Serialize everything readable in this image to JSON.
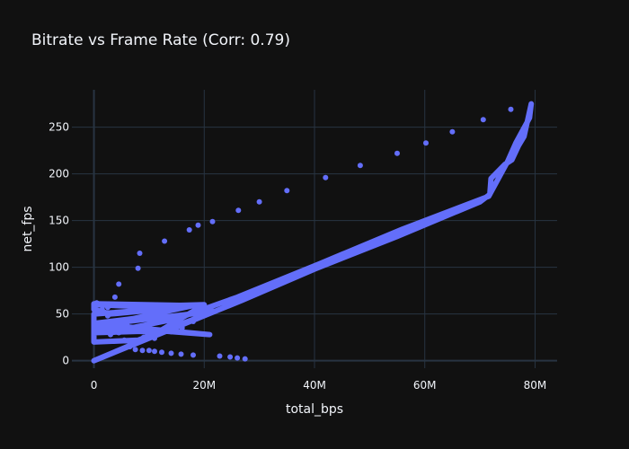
{
  "chart_data": {
    "type": "scatter",
    "title": "Bitrate vs Frame Rate (Corr: 0.79)",
    "xlabel": "total_bps",
    "ylabel": "net_fps",
    "xlim": [
      -4000000,
      84000000
    ],
    "ylim": [
      -8,
      290
    ],
    "x_ticks": [
      {
        "value": 0,
        "label": "0"
      },
      {
        "value": 20000000,
        "label": "20M"
      },
      {
        "value": 40000000,
        "label": "40M"
      },
      {
        "value": 60000000,
        "label": "60M"
      },
      {
        "value": 80000000,
        "label": "80M"
      }
    ],
    "y_ticks": [
      {
        "value": 0,
        "label": "0"
      },
      {
        "value": 50,
        "label": "50"
      },
      {
        "value": 100,
        "label": "100"
      },
      {
        "value": 150,
        "label": "150"
      },
      {
        "value": 200,
        "label": "200"
      },
      {
        "value": 250,
        "label": "250"
      }
    ],
    "grid": true,
    "legend": "none",
    "marker_color": "#636efa",
    "series": [
      {
        "mode": "markers",
        "points": [
          [
            2500000,
            57
          ],
          [
            3800000,
            68
          ],
          [
            4500000,
            82
          ],
          [
            8000000,
            99
          ],
          [
            8300000,
            115
          ],
          [
            12800000,
            128
          ],
          [
            17300000,
            140
          ],
          [
            18900000,
            145
          ],
          [
            21500000,
            149
          ],
          [
            26200000,
            161
          ],
          [
            30000000,
            170
          ],
          [
            35000000,
            182
          ],
          [
            42000000,
            196
          ],
          [
            48300000,
            209
          ],
          [
            55000000,
            222
          ],
          [
            60200000,
            233
          ],
          [
            65000000,
            245
          ],
          [
            70600000,
            258
          ],
          [
            75600000,
            269
          ],
          [
            5500000,
            22
          ],
          [
            6500000,
            15
          ],
          [
            7500000,
            12
          ],
          [
            8800000,
            11
          ],
          [
            10000000,
            11
          ],
          [
            11000000,
            10
          ],
          [
            12300000,
            9
          ],
          [
            14000000,
            8
          ],
          [
            15800000,
            7
          ],
          [
            18000000,
            6
          ],
          [
            22800000,
            5
          ],
          [
            24700000,
            4
          ],
          [
            26000000,
            3
          ],
          [
            27400000,
            2
          ],
          [
            500000,
            62
          ],
          [
            1500000,
            55
          ],
          [
            2500000,
            48
          ],
          [
            3500000,
            41
          ],
          [
            6000000,
            38
          ],
          [
            8000000,
            35
          ],
          [
            10000000,
            32
          ],
          [
            12000000,
            30
          ],
          [
            14000000,
            31
          ],
          [
            9000000,
            25
          ],
          [
            11000000,
            24
          ],
          [
            4500000,
            30
          ],
          [
            3000000,
            28
          ],
          [
            16000000,
            35
          ],
          [
            18000000,
            42
          ]
        ]
      },
      {
        "mode": "lines",
        "points": [
          [
            0,
            60
          ],
          [
            8000000,
            58
          ],
          [
            20000000,
            60
          ],
          [
            10000000,
            25
          ],
          [
            0,
            0
          ],
          [
            27000000,
            65
          ],
          [
            40000000,
            98
          ],
          [
            55000000,
            133
          ],
          [
            70000000,
            170
          ],
          [
            71800000,
            178
          ],
          [
            72000000,
            195
          ],
          [
            74500000,
            210
          ],
          [
            75800000,
            215
          ],
          [
            77000000,
            230
          ],
          [
            78000000,
            240
          ],
          [
            79300000,
            275
          ],
          [
            79000000,
            260
          ],
          [
            76500000,
            233
          ],
          [
            75000000,
            213
          ],
          [
            71600000,
            176
          ],
          [
            56000000,
            141
          ],
          [
            41000000,
            104
          ],
          [
            26000000,
            68
          ],
          [
            15000000,
            45
          ],
          [
            5000000,
            33
          ],
          [
            0,
            30
          ],
          [
            12000000,
            32
          ],
          [
            21000000,
            28
          ],
          [
            8000000,
            35
          ],
          [
            0,
            40
          ],
          [
            7000000,
            45
          ],
          [
            18000000,
            59
          ],
          [
            0,
            61
          ],
          [
            0,
            55
          ],
          [
            3000000,
            50
          ],
          [
            14000000,
            56
          ],
          [
            0,
            50
          ],
          [
            0,
            20
          ],
          [
            8000000,
            22
          ],
          [
            22000000,
            53
          ],
          [
            6000000,
            42
          ],
          [
            0,
            36
          ],
          [
            11000000,
            30
          ]
        ]
      }
    ]
  }
}
